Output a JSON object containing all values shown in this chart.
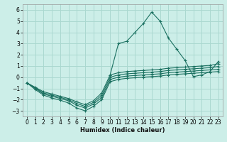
{
  "xlabel": "Humidex (Indice chaleur)",
  "background_color": "#cceee8",
  "grid_color": "#aad8d0",
  "line_color": "#1a7060",
  "xlim": [
    -0.5,
    23.5
  ],
  "ylim": [
    -3.5,
    6.5
  ],
  "xticks": [
    0,
    1,
    2,
    3,
    4,
    5,
    6,
    7,
    8,
    9,
    10,
    11,
    12,
    13,
    14,
    15,
    16,
    17,
    18,
    19,
    20,
    21,
    22,
    23
  ],
  "yticks": [
    -3,
    -2,
    -1,
    0,
    1,
    2,
    3,
    4,
    5,
    6
  ],
  "series": [
    {
      "x": [
        0,
        1,
        2,
        3,
        4,
        5,
        6,
        7,
        8,
        9,
        10,
        11,
        12,
        13,
        14,
        15,
        16,
        17,
        18,
        19,
        20,
        21,
        22,
        23
      ],
      "y": [
        -0.5,
        -1.1,
        -1.6,
        -1.85,
        -2.05,
        -2.3,
        -2.75,
        -3.0,
        -2.6,
        -2.0,
        -0.4,
        -0.2,
        -0.1,
        -0.05,
        0.0,
        0.05,
        0.1,
        0.2,
        0.25,
        0.3,
        0.35,
        0.4,
        0.45,
        0.5
      ]
    },
    {
      "x": [
        0,
        1,
        2,
        3,
        4,
        5,
        6,
        7,
        8,
        9,
        10,
        11,
        12,
        13,
        14,
        15,
        16,
        17,
        18,
        19,
        20,
        21,
        22,
        23
      ],
      "y": [
        -0.5,
        -1.0,
        -1.5,
        -1.7,
        -1.9,
        -2.1,
        -2.5,
        -2.75,
        -2.4,
        -1.8,
        -0.2,
        0.0,
        0.1,
        0.15,
        0.2,
        0.25,
        0.3,
        0.4,
        0.45,
        0.5,
        0.55,
        0.6,
        0.65,
        0.7
      ]
    },
    {
      "x": [
        0,
        1,
        2,
        3,
        4,
        5,
        6,
        7,
        8,
        9,
        10,
        11,
        12,
        13,
        14,
        15,
        16,
        17,
        18,
        19,
        20,
        21,
        22,
        23
      ],
      "y": [
        -0.5,
        -0.95,
        -1.4,
        -1.6,
        -1.8,
        -2.0,
        -2.35,
        -2.6,
        -2.25,
        -1.6,
        0.0,
        0.2,
        0.3,
        0.35,
        0.4,
        0.45,
        0.5,
        0.6,
        0.65,
        0.7,
        0.75,
        0.8,
        0.85,
        0.95
      ]
    },
    {
      "x": [
        0,
        1,
        2,
        3,
        4,
        5,
        6,
        7,
        8,
        9,
        10,
        11,
        12,
        13,
        14,
        15,
        16,
        17,
        18,
        19,
        20,
        21,
        22,
        23
      ],
      "y": [
        -0.5,
        -0.9,
        -1.3,
        -1.5,
        -1.7,
        -1.9,
        -2.2,
        -2.45,
        -2.1,
        -1.4,
        0.2,
        0.4,
        0.5,
        0.55,
        0.6,
        0.65,
        0.7,
        0.8,
        0.85,
        0.9,
        0.95,
        1.0,
        1.05,
        1.2
      ]
    },
    {
      "x": [
        10,
        11,
        12,
        13,
        14,
        15,
        16,
        17,
        18,
        19,
        20,
        21,
        22,
        23
      ],
      "y": [
        0.2,
        3.0,
        3.2,
        4.0,
        4.8,
        5.8,
        5.0,
        3.5,
        2.5,
        1.5,
        0.05,
        0.2,
        0.5,
        1.4
      ]
    }
  ]
}
